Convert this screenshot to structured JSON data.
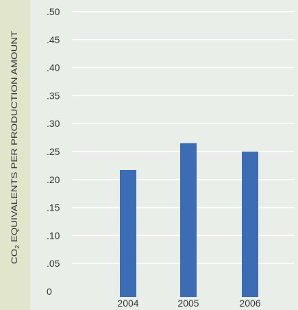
{
  "chart_data": {
    "type": "bar",
    "categories": [
      "2004",
      "2005",
      "2006"
    ],
    "values": [
      0.217,
      0.265,
      0.25
    ],
    "title": "",
    "xlabel": "",
    "ylabel": {
      "prefix": "CO",
      "subscript": "2",
      "suffix": " EQUIVALENTS PER PRODUCTION AMOUNT"
    },
    "ylim": [
      0,
      0.5
    ],
    "yticks": [
      {
        "value": 0,
        "label": "0"
      },
      {
        "value": 0.05,
        "label": ".05"
      },
      {
        "value": 0.1,
        "label": ".10"
      },
      {
        "value": 0.15,
        "label": ".15"
      },
      {
        "value": 0.2,
        "label": ".20"
      },
      {
        "value": 0.25,
        "label": ".25"
      },
      {
        "value": 0.3,
        "label": ".30"
      },
      {
        "value": 0.35,
        "label": ".35"
      },
      {
        "value": 0.4,
        "label": ".40"
      },
      {
        "value": 0.45,
        "label": ".45"
      },
      {
        "value": 0.5,
        "label": ".50"
      }
    ],
    "grid": true,
    "legend": "none"
  },
  "colors": {
    "bar": "#3b6cb4",
    "plot_background": "#e9efe8",
    "label_panel": "#e1e5cc",
    "gridline": "#ffffff",
    "text": "#333333"
  }
}
